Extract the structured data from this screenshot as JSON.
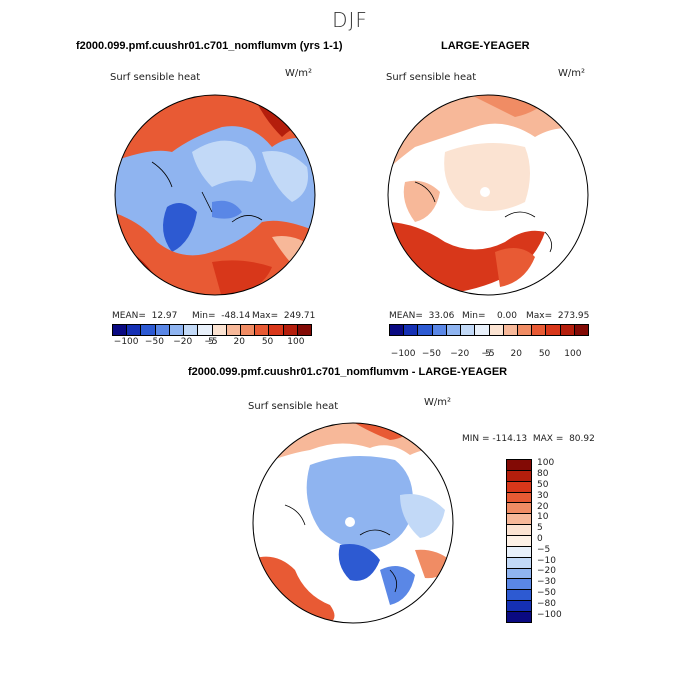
{
  "page": {
    "season": "DJF",
    "var_title": "Surf sensible heat",
    "units": "W/m²"
  },
  "panels": [
    {
      "title": "f2000.099.pmf.cuushr01.c701_nomflumvm (yrs 1-1)",
      "stats": {
        "mean": "MEAN=  12.97",
        "min": "Min=  -48.14",
        "max": "Max=  249.71"
      }
    },
    {
      "title": "LARGE-YEAGER",
      "stats": {
        "mean": "MEAN=  33.06",
        "min": "Min=    0.00",
        "max": "Max=  273.95"
      }
    },
    {
      "title": "f2000.099.pmf.cuushr01.c701_nomflumvm - LARGE-YEAGER",
      "minmax": "MIN = -114.13  MAX =  80.92"
    }
  ],
  "colorbar_h": {
    "labels": [
      "−100",
      "−50",
      "−20",
      "−5",
      "5",
      "20",
      "50",
      "100"
    ],
    "colors": [
      "#0a0a82",
      "#1530b4",
      "#2d5ad2",
      "#5a87e6",
      "#8fb4f0",
      "#c2d9f7",
      "#e8f0fa",
      "#fbe3d2",
      "#f7b899",
      "#f08c64",
      "#e85a34",
      "#d8371a",
      "#b41e0c",
      "#820a05"
    ]
  },
  "colorbar_v": {
    "labels": [
      "100",
      "80",
      "50",
      "30",
      "20",
      "10",
      "5",
      "0",
      "−5",
      "−10",
      "−20",
      "−30",
      "−50",
      "−80",
      "−100"
    ],
    "colors": [
      "#820a05",
      "#b41e0c",
      "#d8371a",
      "#e85a34",
      "#f08c64",
      "#f7b899",
      "#fbe3d2",
      "#fdf1e6",
      "#e8f0fa",
      "#c2d9f7",
      "#8fb4f0",
      "#5a87e6",
      "#2d5ad2",
      "#1530b4",
      "#0a0a82"
    ]
  }
}
